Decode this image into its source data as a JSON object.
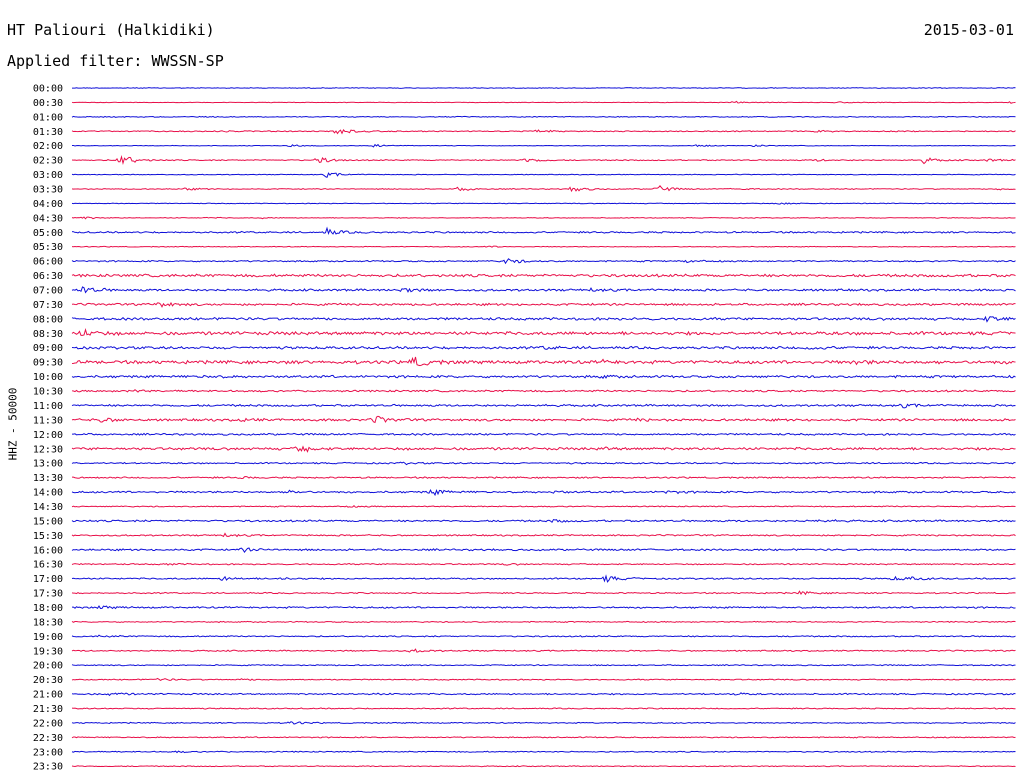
{
  "header": {
    "station": "HT Paliouri (Halkidiki)",
    "date": "2015-03-01",
    "filter": "Applied filter: WWSSN-SP"
  },
  "axis": {
    "y_label": "HHZ - 50000"
  },
  "colors": {
    "blue": "#1010d8",
    "red": "#e8104a"
  },
  "chart_data": {
    "type": "line",
    "description_of_values": "helicorder: 48 traces of 30 minutes each; events listed as [fraction of 30-min window, relative amplitude]",
    "rows": [
      {
        "label": "00:00",
        "color": "blue",
        "noise": 0.4,
        "events": []
      },
      {
        "label": "00:30",
        "color": "red",
        "noise": 0.3,
        "events": [
          [
            0.7,
            1.2
          ],
          [
            0.81,
            0.8
          ],
          [
            0.995,
            1.2
          ]
        ]
      },
      {
        "label": "01:00",
        "color": "blue",
        "noise": 0.5,
        "events": []
      },
      {
        "label": "01:30",
        "color": "red",
        "noise": 0.6,
        "events": [
          [
            0.15,
            0.8
          ],
          [
            0.28,
            4.5
          ],
          [
            0.49,
            2.0
          ],
          [
            0.79,
            0.8
          ]
        ]
      },
      {
        "label": "02:00",
        "color": "blue",
        "noise": 0.3,
        "events": [
          [
            0.23,
            2.0
          ],
          [
            0.32,
            1.5
          ],
          [
            0.66,
            1.2
          ],
          [
            0.72,
            1.2
          ]
        ]
      },
      {
        "label": "02:30",
        "color": "red",
        "noise": 0.6,
        "events": [
          [
            0.05,
            7.5
          ],
          [
            0.26,
            4.0
          ],
          [
            0.48,
            3.0
          ],
          [
            0.79,
            1.2
          ],
          [
            0.9,
            3.5
          ],
          [
            0.97,
            1.5
          ]
        ]
      },
      {
        "label": "03:00",
        "color": "blue",
        "noise": 0.4,
        "events": [
          [
            0.27,
            3.0
          ]
        ]
      },
      {
        "label": "03:30",
        "color": "red",
        "noise": 0.5,
        "events": [
          [
            0.12,
            1.2
          ],
          [
            0.41,
            2.5
          ],
          [
            0.53,
            3.5
          ],
          [
            0.62,
            4.0
          ],
          [
            0.7,
            1.5
          ],
          [
            0.98,
            1.2
          ]
        ]
      },
      {
        "label": "04:00",
        "color": "blue",
        "noise": 0.4,
        "events": [
          [
            0.75,
            1.5
          ]
        ]
      },
      {
        "label": "04:30",
        "color": "red",
        "noise": 0.4,
        "events": [
          [
            0.01,
            1.5
          ],
          [
            0.14,
            0.6
          ],
          [
            0.2,
            0.6
          ]
        ]
      },
      {
        "label": "05:00",
        "color": "blue",
        "noise": 0.9,
        "events": [
          [
            0.27,
            4.0
          ]
        ]
      },
      {
        "label": "05:30",
        "color": "red",
        "noise": 0.4,
        "events": [
          [
            0.44,
            0.8
          ]
        ]
      },
      {
        "label": "06:00",
        "color": "blue",
        "noise": 0.8,
        "events": [
          [
            0.46,
            3.5
          ],
          [
            0.65,
            2.0
          ]
        ]
      },
      {
        "label": "06:30",
        "color": "red",
        "noise": 1.5,
        "events": []
      },
      {
        "label": "07:00",
        "color": "blue",
        "noise": 1.2,
        "events": [
          [
            0.01,
            5.0
          ],
          [
            0.35,
            2.5
          ],
          [
            0.55,
            1.2
          ]
        ]
      },
      {
        "label": "07:30",
        "color": "red",
        "noise": 1.2,
        "events": [
          [
            0.09,
            3.5
          ]
        ]
      },
      {
        "label": "08:00",
        "color": "blue",
        "noise": 1.4,
        "events": [
          [
            0.97,
            3.5
          ]
        ]
      },
      {
        "label": "08:30",
        "color": "red",
        "noise": 1.8,
        "events": [
          [
            0.01,
            4.0
          ]
        ]
      },
      {
        "label": "09:00",
        "color": "blue",
        "noise": 1.4,
        "events": [
          [
            0.5,
            1.5
          ],
          [
            0.78,
            2.5
          ]
        ]
      },
      {
        "label": "09:30",
        "color": "red",
        "noise": 1.8,
        "events": [
          [
            0.36,
            6.5
          ],
          [
            0.56,
            1.5
          ],
          [
            0.83,
            2.0
          ]
        ]
      },
      {
        "label": "10:00",
        "color": "blue",
        "noise": 1.3,
        "events": [
          [
            0.14,
            1.0
          ],
          [
            0.56,
            1.0
          ]
        ]
      },
      {
        "label": "10:30",
        "color": "red",
        "noise": 1.0,
        "events": [
          [
            0.06,
            1.5
          ]
        ]
      },
      {
        "label": "11:00",
        "color": "blue",
        "noise": 1.1,
        "events": [
          [
            0.88,
            1.8
          ]
        ]
      },
      {
        "label": "11:30",
        "color": "red",
        "noise": 1.3,
        "events": [
          [
            0.03,
            2.5
          ],
          [
            0.18,
            1.5
          ],
          [
            0.32,
            4.0
          ],
          [
            0.6,
            1.2
          ]
        ]
      },
      {
        "label": "12:00",
        "color": "blue",
        "noise": 1.0,
        "events": []
      },
      {
        "label": "12:30",
        "color": "red",
        "noise": 1.4,
        "events": [
          [
            0.24,
            4.0
          ],
          [
            0.56,
            1.2
          ]
        ]
      },
      {
        "label": "13:00",
        "color": "blue",
        "noise": 0.8,
        "events": [
          [
            0.35,
            1.0
          ]
        ]
      },
      {
        "label": "13:30",
        "color": "red",
        "noise": 0.8,
        "events": [
          [
            0.18,
            1.2
          ]
        ]
      },
      {
        "label": "14:00",
        "color": "blue",
        "noise": 1.0,
        "events": [
          [
            0.23,
            2.0
          ],
          [
            0.38,
            3.5
          ],
          [
            0.51,
            1.2
          ],
          [
            0.63,
            1.5
          ]
        ]
      },
      {
        "label": "14:30",
        "color": "red",
        "noise": 0.6,
        "events": [
          [
            0.29,
            0.8
          ]
        ]
      },
      {
        "label": "15:00",
        "color": "blue",
        "noise": 1.0,
        "events": [
          [
            0.51,
            1.5
          ],
          [
            0.79,
            1.2
          ]
        ]
      },
      {
        "label": "15:30",
        "color": "red",
        "noise": 0.8,
        "events": [
          [
            0.16,
            1.8
          ]
        ]
      },
      {
        "label": "16:00",
        "color": "blue",
        "noise": 1.0,
        "events": [
          [
            0.18,
            2.0
          ]
        ]
      },
      {
        "label": "16:30",
        "color": "red",
        "noise": 0.7,
        "events": [
          [
            0.1,
            1.0
          ],
          [
            0.46,
            0.8
          ]
        ]
      },
      {
        "label": "17:00",
        "color": "blue",
        "noise": 0.8,
        "events": [
          [
            0.16,
            2.5
          ],
          [
            0.22,
            1.5
          ],
          [
            0.565,
            3.5
          ],
          [
            0.87,
            2.0
          ],
          [
            0.89,
            1.5
          ]
        ]
      },
      {
        "label": "17:30",
        "color": "red",
        "noise": 0.7,
        "events": [
          [
            0.77,
            2.0
          ]
        ]
      },
      {
        "label": "18:00",
        "color": "blue",
        "noise": 0.9,
        "events": [
          [
            0.03,
            1.5
          ]
        ]
      },
      {
        "label": "18:30",
        "color": "red",
        "noise": 0.6,
        "events": []
      },
      {
        "label": "19:00",
        "color": "blue",
        "noise": 0.7,
        "events": [
          [
            0.03,
            1.2
          ]
        ]
      },
      {
        "label": "19:30",
        "color": "red",
        "noise": 0.7,
        "events": [
          [
            0.36,
            2.0
          ]
        ]
      },
      {
        "label": "20:00",
        "color": "blue",
        "noise": 0.6,
        "events": []
      },
      {
        "label": "20:30",
        "color": "red",
        "noise": 0.6,
        "events": [
          [
            0.09,
            1.5
          ],
          [
            0.18,
            0.8
          ]
        ]
      },
      {
        "label": "21:00",
        "color": "blue",
        "noise": 0.8,
        "events": [
          [
            0.04,
            2.0
          ],
          [
            0.31,
            1.2
          ],
          [
            0.7,
            1.2
          ]
        ]
      },
      {
        "label": "21:30",
        "color": "red",
        "noise": 0.6,
        "events": []
      },
      {
        "label": "22:00",
        "color": "blue",
        "noise": 0.6,
        "events": [
          [
            0.23,
            2.0
          ]
        ]
      },
      {
        "label": "22:30",
        "color": "red",
        "noise": 0.6,
        "events": []
      },
      {
        "label": "23:00",
        "color": "blue",
        "noise": 0.6,
        "events": [
          [
            0.11,
            0.8
          ]
        ]
      },
      {
        "label": "23:30",
        "color": "red",
        "noise": 0.5,
        "events": []
      }
    ]
  }
}
